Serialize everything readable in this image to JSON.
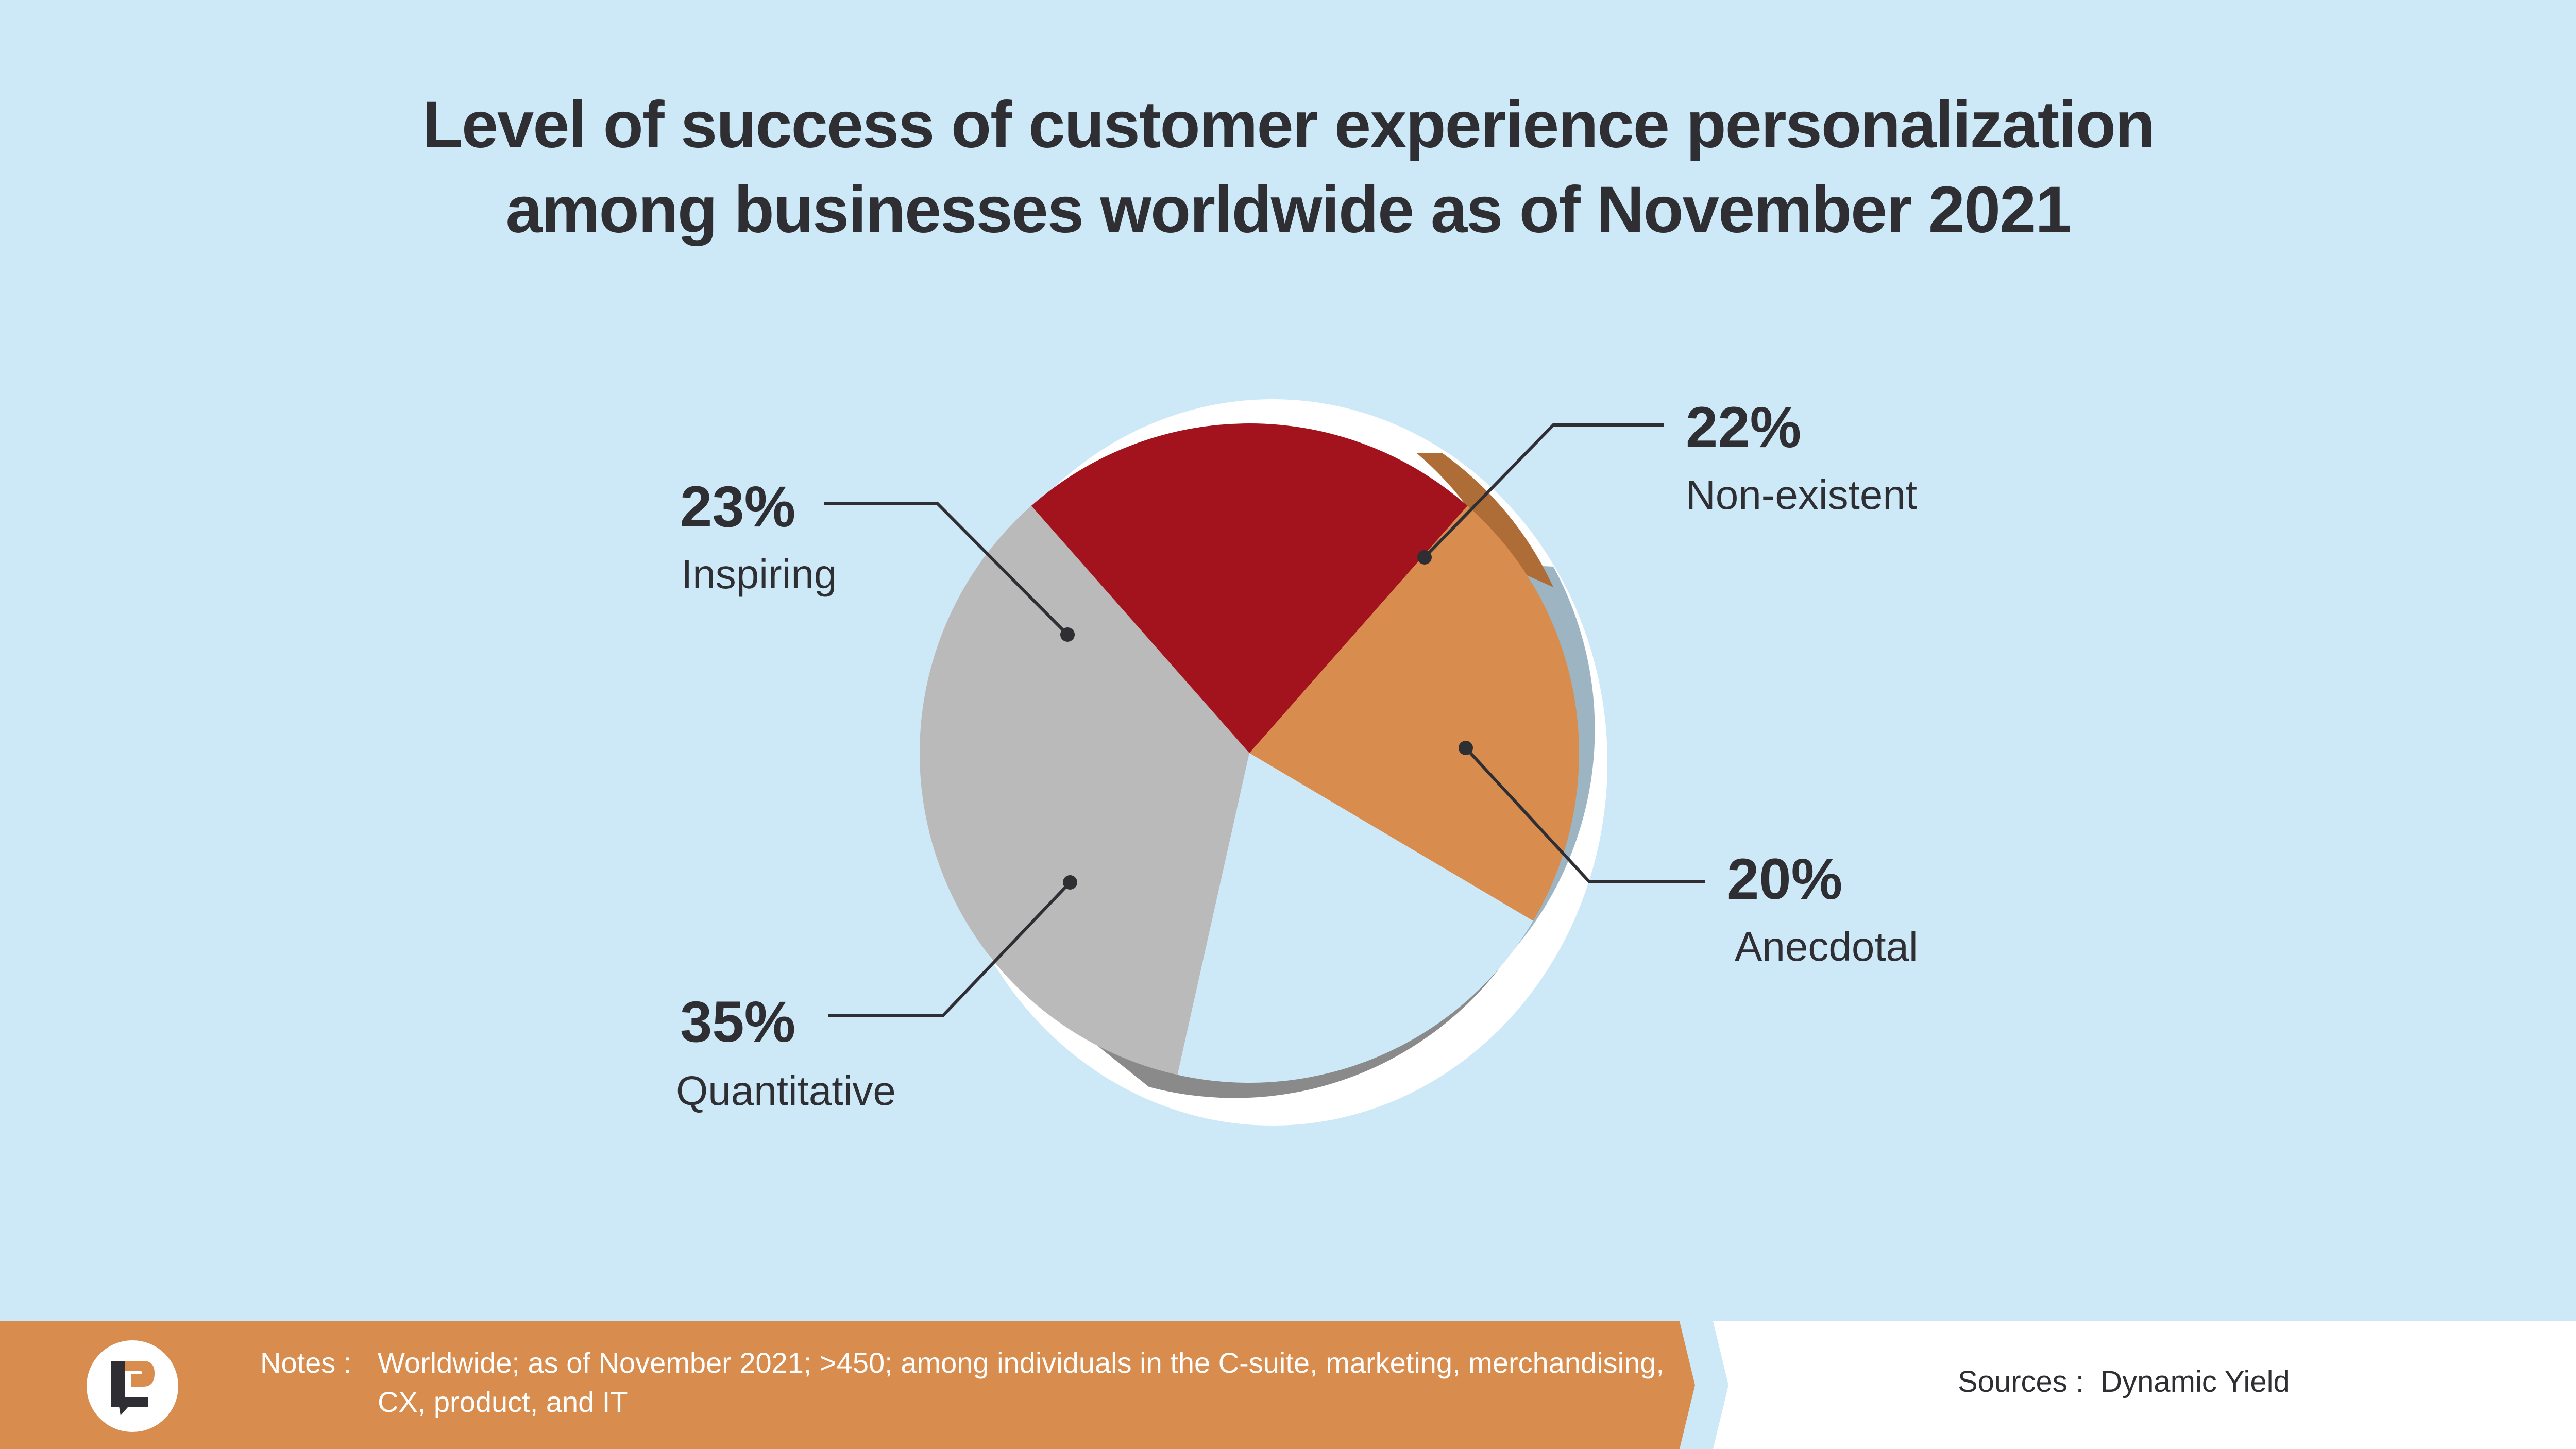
{
  "title": {
    "line1": "Level of success of customer experience personalization",
    "line2": "among businesses worldwide as of November 2021"
  },
  "chart_data": {
    "type": "pie",
    "title": "Level of success of customer experience personalization among businesses worldwide as of November 2021",
    "slices": [
      {
        "label": "Non-existent",
        "value": 22,
        "display": "22%",
        "color": "#d88d4e"
      },
      {
        "label": "Anecdotal",
        "value": 20,
        "display": "20%",
        "color": "#cde9f8"
      },
      {
        "label": "Quantitative",
        "value": 35,
        "display": "35%",
        "color": "#bababa"
      },
      {
        "label": "Inspiring",
        "value": 23,
        "display": "23%",
        "color": "#a3131d"
      }
    ]
  },
  "footer": {
    "notes_label": "Notes :",
    "notes_text": "Worldwide; as of November 2021; >450; among individuals in the C-suite, marketing, merchandising, CX, product, and IT",
    "sources": "Sources :  Dynamic Yield"
  },
  "colors": {
    "background": "#cde9f8",
    "footer_orange": "#d88d4e",
    "text": "#2e2e33"
  }
}
